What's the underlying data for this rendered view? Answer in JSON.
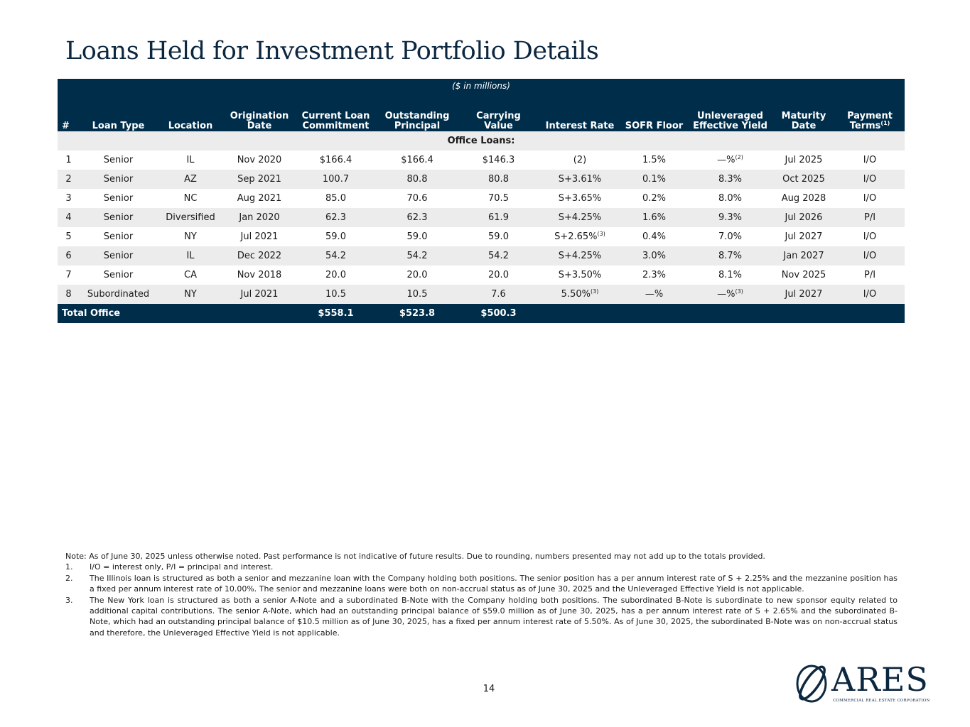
{
  "title": "Loans Held for Investment Portfolio Details",
  "units": "($ in millions)",
  "columns": {
    "num": "#",
    "loan_type": "Loan Type",
    "location": "Location",
    "origination_1": "Origination",
    "origination_2": "Date",
    "commitment_1": "Current Loan",
    "commitment_2": "Commitment",
    "outstanding_1": "Outstanding",
    "outstanding_2": "Principal",
    "carrying_1": "Carrying",
    "carrying_2": "Value",
    "interest_rate": "Interest Rate",
    "sofr_floor": "SOFR Floor",
    "yield_1": "Unleveraged",
    "yield_2": "Effective Yield",
    "maturity_1": "Maturity",
    "maturity_2": "Date",
    "payment_1": "Payment",
    "payment_2": "Terms",
    "payment_sup": "(1)"
  },
  "section_label": "Office Loans:",
  "rows": [
    {
      "num": "1",
      "loan_type": "Senior",
      "location": "IL",
      "origination": "Nov 2020",
      "commitment": "$166.4",
      "outstanding": "$166.4",
      "carrying": "$146.3",
      "interest_rate": "(2)",
      "interest_sup": "",
      "sofr_floor": "1.5%",
      "yield": "—%",
      "yield_sup": "(2)",
      "maturity": "Jul 2025",
      "payment": "I/O"
    },
    {
      "num": "2",
      "loan_type": "Senior",
      "location": "AZ",
      "origination": "Sep 2021",
      "commitment": "100.7",
      "outstanding": "80.8",
      "carrying": "80.8",
      "interest_rate": "S+3.61%",
      "interest_sup": "",
      "sofr_floor": "0.1%",
      "yield": "8.3%",
      "yield_sup": "",
      "maturity": "Oct 2025",
      "payment": "I/O"
    },
    {
      "num": "3",
      "loan_type": "Senior",
      "location": "NC",
      "origination": "Aug 2021",
      "commitment": "85.0",
      "outstanding": "70.6",
      "carrying": "70.5",
      "interest_rate": "S+3.65%",
      "interest_sup": "",
      "sofr_floor": "0.2%",
      "yield": "8.0%",
      "yield_sup": "",
      "maturity": "Aug 2028",
      "payment": "I/O"
    },
    {
      "num": "4",
      "loan_type": "Senior",
      "location": "Diversified",
      "origination": "Jan 2020",
      "commitment": "62.3",
      "outstanding": "62.3",
      "carrying": "61.9",
      "interest_rate": "S+4.25%",
      "interest_sup": "",
      "sofr_floor": "1.6%",
      "yield": "9.3%",
      "yield_sup": "",
      "maturity": "Jul 2026",
      "payment": "P/I"
    },
    {
      "num": "5",
      "loan_type": "Senior",
      "location": "NY",
      "origination": "Jul 2021",
      "commitment": "59.0",
      "outstanding": "59.0",
      "carrying": "59.0",
      "interest_rate": "S+2.65%",
      "interest_sup": "(3)",
      "sofr_floor": "0.4%",
      "yield": "7.0%",
      "yield_sup": "",
      "maturity": "Jul 2027",
      "payment": "I/O"
    },
    {
      "num": "6",
      "loan_type": "Senior",
      "location": "IL",
      "origination": "Dec 2022",
      "commitment": "54.2",
      "outstanding": "54.2",
      "carrying": "54.2",
      "interest_rate": "S+4.25%",
      "interest_sup": "",
      "sofr_floor": "3.0%",
      "yield": "8.7%",
      "yield_sup": "",
      "maturity": "Jan 2027",
      "payment": "I/O"
    },
    {
      "num": "7",
      "loan_type": "Senior",
      "location": "CA",
      "origination": "Nov 2018",
      "commitment": "20.0",
      "outstanding": "20.0",
      "carrying": "20.0",
      "interest_rate": "S+3.50%",
      "interest_sup": "",
      "sofr_floor": "2.3%",
      "yield": "8.1%",
      "yield_sup": "",
      "maturity": "Nov 2025",
      "payment": "P/I"
    },
    {
      "num": "8",
      "loan_type": "Subordinated",
      "location": "NY",
      "origination": "Jul 2021",
      "commitment": "10.5",
      "outstanding": "10.5",
      "carrying": "7.6",
      "interest_rate": "5.50%",
      "interest_sup": "(3)",
      "sofr_floor": "—%",
      "yield": "—%",
      "yield_sup": "(3)",
      "maturity": "Jul 2027",
      "payment": "I/O"
    }
  ],
  "total": {
    "label": "Total Office",
    "commitment": "$558.1",
    "outstanding": "$523.8",
    "carrying": "$500.3"
  },
  "notes": {
    "intro": "Note: As of June 30, 2025 unless otherwise noted. Past performance is not indicative of future results. Due to rounding, numbers presented may not add up to the totals provided.",
    "items": [
      {
        "num": "1.",
        "text": "I/O = interest only, P/I = principal and interest."
      },
      {
        "num": "2.",
        "text": "The Illinois loan is structured as both a senior and mezzanine loan with the Company holding both positions. The senior position has a per annum interest rate of S + 2.25% and the mezzanine position has a fixed per annum interest rate of 10.00%. The senior and mezzanine loans were both on non-accrual status as of June 30, 2025 and the Unleveraged Effective Yield is not applicable."
      },
      {
        "num": "3.",
        "text": "The New York loan is structured as both a senior A-Note and a subordinated B-Note with the Company holding both positions. The subordinated B-Note is subordinate to new sponsor equity related to additional capital contributions. The senior A-Note, which had an outstanding principal balance of $59.0 million as of June 30, 2025, has a per annum interest rate of S + 2.65% and the subordinated B-Note, which had an outstanding principal balance of $10.5 million as of June 30, 2025, has a fixed per annum interest rate of 5.50%. As of June 30, 2025, the subordinated B-Note was on non-accrual status and therefore, the Unleveraged Effective Yield is not applicable."
      }
    ]
  },
  "page_number": "14",
  "logo": {
    "wordmark": "ARES",
    "tagline": "COMMERCIAL REAL ESTATE CORPORATION",
    "icon": "ares-globe-logo-icon",
    "color": "#0c2740"
  },
  "colors": {
    "header_bg": "#002d4a",
    "stripe_bg": "#ececec",
    "title": "#0c2740"
  }
}
